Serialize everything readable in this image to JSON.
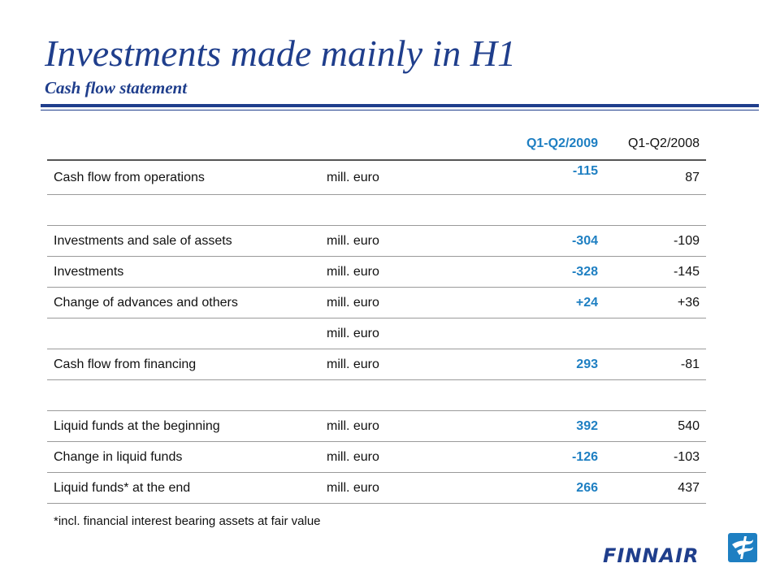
{
  "header": {
    "title": "Investments made mainly in H1",
    "subtitle": "Cash flow statement"
  },
  "table": {
    "columns": {
      "current": "Q1-Q2/2009",
      "previous": "Q1-Q2/2008"
    },
    "rows": [
      {
        "label": "Cash flow from operations",
        "unit": "mill. euro",
        "current": "-115",
        "previous": "87"
      },
      {
        "label": "",
        "unit": "",
        "current": "",
        "previous": ""
      },
      {
        "label": "Investments and sale of assets",
        "unit": "mill. euro",
        "current": "-304",
        "previous": "-109"
      },
      {
        "label": "Investments",
        "unit": "mill. euro",
        "current": "-328",
        "previous": "-145"
      },
      {
        "label": "Change of advances and others",
        "unit": "mill. euro",
        "current": "+24",
        "previous": "+36"
      },
      {
        "label": "",
        "unit": "mill. euro",
        "current": "",
        "previous": ""
      },
      {
        "label": "Cash flow from financing",
        "unit": "mill. euro",
        "current": "293",
        "previous": "-81"
      },
      {
        "label": "",
        "unit": "",
        "current": "",
        "previous": ""
      },
      {
        "label": "Liquid funds at the beginning",
        "unit": "mill. euro",
        "current": "392",
        "previous": "540"
      },
      {
        "label": "Change in liquid funds",
        "unit": "mill. euro",
        "current": "-126",
        "previous": "-103"
      },
      {
        "label": "Liquid funds* at the end",
        "unit": "mill. euro",
        "current": "266",
        "previous": "437"
      }
    ]
  },
  "footnote": "*incl. financial interest bearing assets at fair value",
  "logo": {
    "text": "FINNAIR",
    "icon": "finnair-f-icon"
  },
  "colors": {
    "brand_blue": "#1f3e8c",
    "accent_blue": "#1e7fc2"
  }
}
